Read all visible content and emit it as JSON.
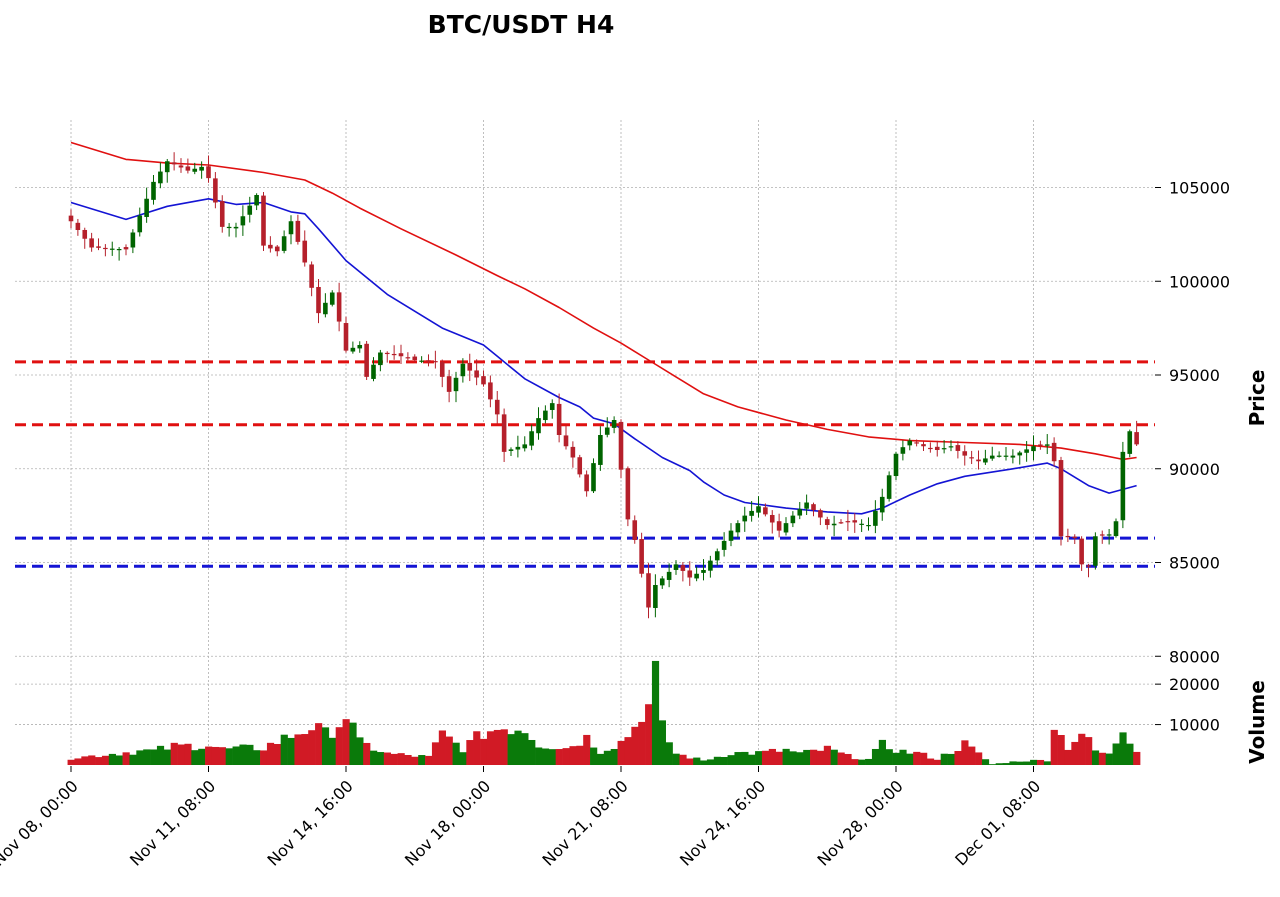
{
  "chart_data": {
    "type": "candlestick",
    "title": "BTC/USDT H4",
    "price_axis": {
      "label": "Price",
      "ticks": [
        "80000",
        "85000",
        "90000",
        "95000",
        "100000",
        "105000"
      ],
      "ylim": [
        79800,
        108600
      ]
    },
    "volume_axis": {
      "label": "Volume",
      "ticks": [
        "10000",
        "20000"
      ],
      "ylim": [
        0,
        23500
      ]
    },
    "x_axis": {
      "ticks": [
        "Nov 08, 00:00",
        "Nov 11, 08:00",
        "Nov 14, 16:00",
        "Nov 18, 00:00",
        "Nov 21, 08:00",
        "Nov 24, 16:00",
        "Nov 28, 00:00",
        "Dec 01, 08:00"
      ]
    },
    "grid": true,
    "colors": {
      "up": "#006400",
      "down": "#b5202b",
      "vol_up": "#0a7a0a",
      "vol_down": "#d11a25",
      "ma_fast": "#1414d4",
      "ma_slow": "#e01010",
      "resistance": "#e01010",
      "support": "#1414d4"
    },
    "horizontal_lines": [
      {
        "kind": "resistance",
        "y": 95700
      },
      {
        "kind": "resistance",
        "y": 92350
      },
      {
        "kind": "support",
        "y": 86300
      },
      {
        "kind": "support",
        "y": 84800
      }
    ],
    "ohlc_waypoints": [
      {
        "i": 0,
        "c": 103200
      },
      {
        "i": 3,
        "c": 101800
      },
      {
        "i": 8,
        "c": 101700
      },
      {
        "i": 10,
        "c": 103500
      },
      {
        "i": 12,
        "c": 105300
      },
      {
        "i": 14,
        "c": 106400
      },
      {
        "i": 17,
        "c": 105900
      },
      {
        "i": 19,
        "c": 106100
      },
      {
        "i": 20,
        "c": 105500
      },
      {
        "i": 22,
        "c": 102900
      },
      {
        "i": 24,
        "c": 102900
      },
      {
        "i": 27,
        "c": 104600
      },
      {
        "i": 28,
        "c": 101900
      },
      {
        "i": 30,
        "c": 101600
      },
      {
        "i": 32,
        "c": 103200
      },
      {
        "i": 34,
        "c": 101000
      },
      {
        "i": 36,
        "c": 98300
      },
      {
        "i": 38,
        "c": 99400
      },
      {
        "i": 40,
        "c": 96300
      },
      {
        "i": 42,
        "c": 96600
      },
      {
        "i": 43,
        "c": 94900
      },
      {
        "i": 45,
        "c": 96200
      },
      {
        "i": 48,
        "c": 96000
      },
      {
        "i": 50,
        "c": 95800
      },
      {
        "i": 53,
        "c": 95700
      },
      {
        "i": 55,
        "c": 94100
      },
      {
        "i": 57,
        "c": 95600
      },
      {
        "i": 60,
        "c": 94500
      },
      {
        "i": 62,
        "c": 92900
      },
      {
        "i": 63,
        "c": 90900
      },
      {
        "i": 66,
        "c": 91300
      },
      {
        "i": 68,
        "c": 92700
      },
      {
        "i": 70,
        "c": 93500
      },
      {
        "i": 71,
        "c": 91800
      },
      {
        "i": 73,
        "c": 90600
      },
      {
        "i": 75,
        "c": 88800
      },
      {
        "i": 77,
        "c": 91800
      },
      {
        "i": 79,
        "c": 92600
      },
      {
        "i": 81,
        "c": 87300
      },
      {
        "i": 82,
        "c": 86200
      },
      {
        "i": 84,
        "c": 82600
      },
      {
        "i": 85,
        "c": 83800
      },
      {
        "i": 87,
        "c": 84500
      },
      {
        "i": 88,
        "c": 84900
      },
      {
        "i": 90,
        "c": 84200
      },
      {
        "i": 92,
        "c": 84600
      },
      {
        "i": 94,
        "c": 85600
      },
      {
        "i": 96,
        "c": 86700
      },
      {
        "i": 98,
        "c": 87500
      },
      {
        "i": 100,
        "c": 88000
      },
      {
        "i": 103,
        "c": 86700
      },
      {
        "i": 105,
        "c": 87500
      },
      {
        "i": 107,
        "c": 88200
      },
      {
        "i": 110,
        "c": 87000
      },
      {
        "i": 113,
        "c": 87200
      },
      {
        "i": 116,
        "c": 87000
      },
      {
        "i": 118,
        "c": 88500
      },
      {
        "i": 120,
        "c": 90800
      },
      {
        "i": 122,
        "c": 91500
      },
      {
        "i": 124,
        "c": 91200
      },
      {
        "i": 126,
        "c": 91000
      },
      {
        "i": 128,
        "c": 91200
      },
      {
        "i": 130,
        "c": 90700
      },
      {
        "i": 132,
        "c": 90400
      },
      {
        "i": 134,
        "c": 90700
      },
      {
        "i": 137,
        "c": 90700
      },
      {
        "i": 140,
        "c": 91200
      },
      {
        "i": 142,
        "c": 91300
      },
      {
        "i": 143,
        "c": 90400
      },
      {
        "i": 144,
        "c": 86400
      },
      {
        "i": 146,
        "c": 86300
      },
      {
        "i": 147,
        "c": 84900
      },
      {
        "i": 148,
        "c": 84800
      },
      {
        "i": 149,
        "c": 86400
      },
      {
        "i": 151,
        "c": 86500
      },
      {
        "i": 152,
        "c": 87200
      },
      {
        "i": 153,
        "c": 90900
      },
      {
        "i": 154,
        "c": 92000
      },
      {
        "i": 155,
        "c": 91300
      }
    ],
    "ma_fast": [
      {
        "i": 0,
        "v": 104200
      },
      {
        "i": 8,
        "v": 103300
      },
      {
        "i": 14,
        "v": 104000
      },
      {
        "i": 20,
        "v": 104400
      },
      {
        "i": 24,
        "v": 104100
      },
      {
        "i": 28,
        "v": 104200
      },
      {
        "i": 32,
        "v": 103700
      },
      {
        "i": 34,
        "v": 103600
      },
      {
        "i": 36,
        "v": 102800
      },
      {
        "i": 40,
        "v": 101100
      },
      {
        "i": 46,
        "v": 99300
      },
      {
        "i": 54,
        "v": 97500
      },
      {
        "i": 60,
        "v": 96600
      },
      {
        "i": 62,
        "v": 96000
      },
      {
        "i": 66,
        "v": 94800
      },
      {
        "i": 71,
        "v": 93800
      },
      {
        "i": 74,
        "v": 93300
      },
      {
        "i": 76,
        "v": 92700
      },
      {
        "i": 79,
        "v": 92400
      },
      {
        "i": 82,
        "v": 91600
      },
      {
        "i": 86,
        "v": 90600
      },
      {
        "i": 90,
        "v": 89900
      },
      {
        "i": 92,
        "v": 89300
      },
      {
        "i": 95,
        "v": 88600
      },
      {
        "i": 98,
        "v": 88200
      },
      {
        "i": 104,
        "v": 87900
      },
      {
        "i": 110,
        "v": 87700
      },
      {
        "i": 115,
        "v": 87600
      },
      {
        "i": 118,
        "v": 87900
      },
      {
        "i": 122,
        "v": 88600
      },
      {
        "i": 126,
        "v": 89200
      },
      {
        "i": 130,
        "v": 89600
      },
      {
        "i": 137,
        "v": 90000
      },
      {
        "i": 142,
        "v": 90300
      },
      {
        "i": 144,
        "v": 90000
      },
      {
        "i": 148,
        "v": 89100
      },
      {
        "i": 151,
        "v": 88700
      },
      {
        "i": 153,
        "v": 88900
      },
      {
        "i": 155,
        "v": 89100
      }
    ],
    "ma_slow": [
      {
        "i": 0,
        "v": 107400
      },
      {
        "i": 8,
        "v": 106500
      },
      {
        "i": 14,
        "v": 106300
      },
      {
        "i": 20,
        "v": 106200
      },
      {
        "i": 28,
        "v": 105800
      },
      {
        "i": 34,
        "v": 105400
      },
      {
        "i": 38,
        "v": 104700
      },
      {
        "i": 42,
        "v": 103900
      },
      {
        "i": 48,
        "v": 102800
      },
      {
        "i": 56,
        "v": 101400
      },
      {
        "i": 62,
        "v": 100300
      },
      {
        "i": 66,
        "v": 99600
      },
      {
        "i": 71,
        "v": 98600
      },
      {
        "i": 76,
        "v": 97500
      },
      {
        "i": 80,
        "v": 96700
      },
      {
        "i": 84,
        "v": 95800
      },
      {
        "i": 88,
        "v": 94900
      },
      {
        "i": 92,
        "v": 94000
      },
      {
        "i": 97,
        "v": 93300
      },
      {
        "i": 104,
        "v": 92600
      },
      {
        "i": 110,
        "v": 92100
      },
      {
        "i": 116,
        "v": 91700
      },
      {
        "i": 122,
        "v": 91500
      },
      {
        "i": 130,
        "v": 91400
      },
      {
        "i": 138,
        "v": 91300
      },
      {
        "i": 144,
        "v": 91100
      },
      {
        "i": 149,
        "v": 90800
      },
      {
        "i": 153,
        "v": 90500
      },
      {
        "i": 155,
        "v": 90600
      }
    ],
    "volume_waypoints": [
      {
        "i": 0,
        "v": 1700
      },
      {
        "i": 10,
        "v": 3500
      },
      {
        "i": 12,
        "v": 3500
      },
      {
        "i": 15,
        "v": 4600
      },
      {
        "i": 20,
        "v": 5000
      },
      {
        "i": 22,
        "v": 3900
      },
      {
        "i": 28,
        "v": 4300
      },
      {
        "i": 35,
        "v": 9500
      },
      {
        "i": 37,
        "v": 7600
      },
      {
        "i": 39,
        "v": 10300
      },
      {
        "i": 40,
        "v": 12500
      },
      {
        "i": 42,
        "v": 5500
      },
      {
        "i": 46,
        "v": 2800
      },
      {
        "i": 52,
        "v": 2000
      },
      {
        "i": 54,
        "v": 7600
      },
      {
        "i": 57,
        "v": 4100
      },
      {
        "i": 60,
        "v": 8000
      },
      {
        "i": 63,
        "v": 9400
      },
      {
        "i": 66,
        "v": 9000
      },
      {
        "i": 68,
        "v": 5200
      },
      {
        "i": 72,
        "v": 4200
      },
      {
        "i": 75,
        "v": 6800
      },
      {
        "i": 77,
        "v": 3500
      },
      {
        "i": 80,
        "v": 5700
      },
      {
        "i": 82,
        "v": 9400
      },
      {
        "i": 83,
        "v": 13500
      },
      {
        "i": 84,
        "v": 14300
      },
      {
        "i": 85,
        "v": 22000
      },
      {
        "i": 86,
        "v": 9000
      },
      {
        "i": 88,
        "v": 2800
      },
      {
        "i": 92,
        "v": 1100
      },
      {
        "i": 96,
        "v": 3000
      },
      {
        "i": 100,
        "v": 3000
      },
      {
        "i": 104,
        "v": 3700
      },
      {
        "i": 106,
        "v": 2800
      },
      {
        "i": 110,
        "v": 4000
      },
      {
        "i": 113,
        "v": 2200
      },
      {
        "i": 116,
        "v": 1400
      },
      {
        "i": 118,
        "v": 5000
      },
      {
        "i": 121,
        "v": 3300
      },
      {
        "i": 123,
        "v": 3000
      },
      {
        "i": 126,
        "v": 1500
      },
      {
        "i": 130,
        "v": 5200
      },
      {
        "i": 134,
        "v": 200
      },
      {
        "i": 138,
        "v": 1000
      },
      {
        "i": 142,
        "v": 1200
      },
      {
        "i": 143,
        "v": 10200
      },
      {
        "i": 144,
        "v": 7000
      },
      {
        "i": 145,
        "v": 4600
      },
      {
        "i": 147,
        "v": 8000
      },
      {
        "i": 149,
        "v": 3500
      },
      {
        "i": 151,
        "v": 2500
      },
      {
        "i": 153,
        "v": 9000
      },
      {
        "i": 155,
        "v": 4000
      }
    ]
  }
}
